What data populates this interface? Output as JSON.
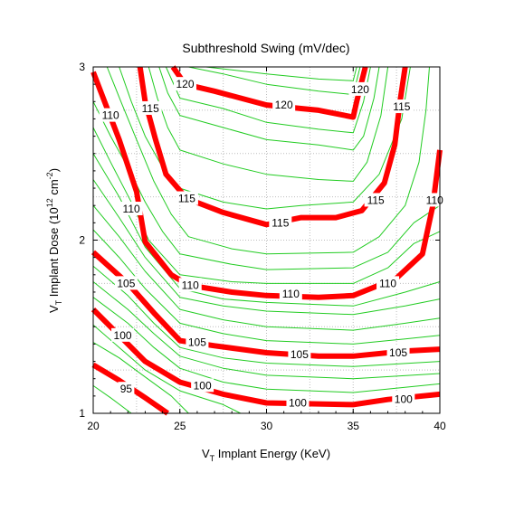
{
  "chart_data": {
    "type": "contour",
    "title": "Subthreshold Swing (mV/dec)",
    "xlabel": {
      "prefix": "V",
      "sub": "T",
      "suffix": " Implant Energy (KeV)"
    },
    "ylabel": {
      "prefix": "V",
      "sub": "T",
      "middle": " Implant Dose (10",
      "sup1": "12",
      "middle2": " cm",
      "sup2": "-2",
      "suffix": ")"
    },
    "xlim": [
      20,
      40
    ],
    "ylim": [
      1,
      3
    ],
    "xticks": [
      "20",
      "25",
      "30",
      "35",
      "40"
    ],
    "yticks": [
      "1",
      "2",
      "3"
    ],
    "grid": true,
    "major_color": "#ff0000",
    "minor_color": "#22cc22",
    "grid_color": "#bdbdbd",
    "major_levels": [
      {
        "level": "95",
        "label_at": [
          21.9,
          1.14
        ],
        "points": [
          [
            20.0,
            1.28
          ],
          [
            21.5,
            1.19
          ],
          [
            23.0,
            1.09
          ],
          [
            24.3,
            1.0
          ]
        ]
      },
      {
        "level": "100",
        "label_at": [
          26.3,
          1.16
        ],
        "points": [
          [
            20.0,
            1.6
          ],
          [
            21.5,
            1.45
          ],
          [
            23.0,
            1.3
          ],
          [
            25.0,
            1.18
          ],
          [
            27.5,
            1.11
          ],
          [
            30.0,
            1.06
          ],
          [
            35.0,
            1.05
          ],
          [
            37.0,
            1.08
          ],
          [
            40.0,
            1.11
          ]
        ],
        "labels_at": [
          [
            21.7,
            1.45
          ],
          [
            26.3,
            1.16
          ],
          [
            31.8,
            1.06
          ],
          [
            37.9,
            1.08
          ]
        ]
      },
      {
        "level": "105",
        "label_at": [
          26.0,
          1.41
        ],
        "points": [
          [
            20.0,
            1.93
          ],
          [
            22.0,
            1.75
          ],
          [
            23.5,
            1.58
          ],
          [
            25.0,
            1.42
          ],
          [
            27.0,
            1.39
          ],
          [
            30.0,
            1.35
          ],
          [
            33.0,
            1.33
          ],
          [
            35.0,
            1.33
          ],
          [
            38.0,
            1.36
          ],
          [
            40.0,
            1.37
          ]
        ],
        "labels_at": [
          [
            21.9,
            1.75
          ],
          [
            26.0,
            1.41
          ],
          [
            31.9,
            1.34
          ],
          [
            37.6,
            1.35
          ]
        ]
      },
      {
        "level": "110",
        "label_at": [
          25.6,
          1.74
        ],
        "points": [
          [
            20.0,
            2.97
          ],
          [
            21.5,
            2.58
          ],
          [
            22.5,
            2.28
          ],
          [
            23.0,
            1.99
          ],
          [
            24.5,
            1.8
          ],
          [
            25.5,
            1.74
          ],
          [
            28.0,
            1.7
          ],
          [
            30.0,
            1.68
          ],
          [
            33.0,
            1.67
          ],
          [
            35.0,
            1.68
          ],
          [
            37.5,
            1.78
          ],
          [
            39.0,
            1.92
          ],
          [
            39.6,
            2.2
          ],
          [
            40.0,
            2.52
          ]
        ],
        "labels_at": [
          [
            21.0,
            2.72
          ],
          [
            22.2,
            2.18
          ],
          [
            25.6,
            1.74
          ],
          [
            31.4,
            1.69
          ],
          [
            37.0,
            1.75
          ],
          [
            39.7,
            2.23
          ]
        ]
      },
      {
        "level": "115",
        "label_at": [
          25.4,
          2.24
        ],
        "points": [
          [
            22.7,
            3.0
          ],
          [
            23.0,
            2.8
          ],
          [
            23.6,
            2.58
          ],
          [
            24.2,
            2.38
          ],
          [
            25.4,
            2.24
          ],
          [
            27.5,
            2.16
          ],
          [
            30.0,
            2.09
          ],
          [
            32.0,
            2.13
          ],
          [
            34.0,
            2.13
          ],
          [
            35.5,
            2.17
          ],
          [
            36.8,
            2.33
          ],
          [
            37.4,
            2.55
          ],
          [
            37.7,
            2.8
          ],
          [
            38.0,
            3.0
          ]
        ],
        "labels_at": [
          [
            23.3,
            2.76
          ],
          [
            25.4,
            2.24
          ],
          [
            30.8,
            2.1
          ],
          [
            36.3,
            2.23
          ],
          [
            37.8,
            2.77
          ]
        ]
      },
      {
        "level": "120",
        "label_at": [
          25.3,
          2.9
        ],
        "points": [
          [
            24.6,
            3.0
          ],
          [
            25.3,
            2.9
          ],
          [
            27.0,
            2.86
          ],
          [
            30.0,
            2.78
          ],
          [
            32.0,
            2.76
          ],
          [
            33.0,
            2.75
          ],
          [
            35.0,
            2.71
          ],
          [
            35.2,
            2.8
          ],
          [
            35.7,
            3.0
          ]
        ],
        "labels_at": [
          [
            25.3,
            2.9
          ],
          [
            31.0,
            2.78
          ],
          [
            35.4,
            2.87
          ]
        ]
      }
    ],
    "minor_levels": [
      {
        "points": [
          [
            20.0,
            1.16
          ],
          [
            21.0,
            1.09
          ],
          [
            22.2,
            1.0
          ]
        ]
      },
      {
        "points": [
          [
            20.0,
            1.41
          ],
          [
            21.5,
            1.32
          ],
          [
            23.0,
            1.21
          ],
          [
            24.5,
            1.1
          ],
          [
            25.5,
            1.0
          ]
        ]
      },
      {
        "points": [
          [
            20.0,
            1.51
          ],
          [
            21.5,
            1.38
          ],
          [
            23.0,
            1.25
          ],
          [
            25.0,
            1.13
          ],
          [
            27.5,
            1.05
          ],
          [
            28.5,
            1.0
          ]
        ]
      },
      {
        "points": [
          [
            20.0,
            1.67
          ],
          [
            22.0,
            1.52
          ],
          [
            23.5,
            1.38
          ],
          [
            25.0,
            1.26
          ],
          [
            27.5,
            1.18
          ],
          [
            30.0,
            1.14
          ],
          [
            35.0,
            1.12
          ],
          [
            40.0,
            1.17
          ]
        ]
      },
      {
        "points": [
          [
            20.0,
            1.76
          ],
          [
            22.0,
            1.6
          ],
          [
            23.5,
            1.46
          ],
          [
            25.0,
            1.33
          ],
          [
            27.5,
            1.26
          ],
          [
            30.0,
            1.22
          ],
          [
            35.0,
            1.2
          ],
          [
            40.0,
            1.23
          ]
        ]
      },
      {
        "points": [
          [
            20.0,
            1.85
          ],
          [
            22.0,
            1.68
          ],
          [
            23.5,
            1.52
          ],
          [
            25.0,
            1.38
          ],
          [
            27.5,
            1.32
          ],
          [
            30.0,
            1.29
          ],
          [
            35.0,
            1.27
          ],
          [
            40.0,
            1.3
          ]
        ]
      },
      {
        "points": [
          [
            20.0,
            2.06
          ],
          [
            21.5,
            1.9
          ],
          [
            23.0,
            1.72
          ],
          [
            25.0,
            1.52
          ],
          [
            27.5,
            1.46
          ],
          [
            30.0,
            1.42
          ],
          [
            35.0,
            1.4
          ],
          [
            38.0,
            1.43
          ],
          [
            40.0,
            1.45
          ]
        ]
      },
      {
        "points": [
          [
            20.0,
            2.2
          ],
          [
            21.5,
            2.02
          ],
          [
            23.0,
            1.82
          ],
          [
            25.0,
            1.6
          ],
          [
            27.5,
            1.54
          ],
          [
            30.0,
            1.5
          ],
          [
            35.0,
            1.48
          ],
          [
            38.0,
            1.52
          ],
          [
            40.0,
            1.55
          ]
        ]
      },
      {
        "points": [
          [
            20.0,
            2.35
          ],
          [
            21.5,
            2.13
          ],
          [
            23.0,
            1.9
          ],
          [
            25.0,
            1.67
          ],
          [
            27.5,
            1.62
          ],
          [
            30.0,
            1.59
          ],
          [
            35.0,
            1.57
          ],
          [
            38.0,
            1.62
          ],
          [
            40.0,
            1.66
          ]
        ]
      },
      {
        "points": [
          [
            20.0,
            2.5
          ],
          [
            21.5,
            2.25
          ],
          [
            23.0,
            1.96
          ],
          [
            25.0,
            1.72
          ],
          [
            27.5,
            1.66
          ],
          [
            30.0,
            1.64
          ],
          [
            35.0,
            1.62
          ],
          [
            38.0,
            1.7
          ],
          [
            40.0,
            1.76
          ]
        ]
      },
      {
        "points": [
          [
            20.0,
            2.65
          ],
          [
            21.0,
            2.45
          ],
          [
            22.3,
            2.2
          ],
          [
            23.2,
            2.0
          ],
          [
            25.0,
            1.8
          ],
          [
            28.0,
            1.76
          ],
          [
            30.0,
            1.75
          ],
          [
            35.0,
            1.75
          ],
          [
            37.0,
            1.84
          ],
          [
            38.5,
            1.98
          ],
          [
            40.0,
            2.05
          ]
        ]
      },
      {
        "points": [
          [
            20.0,
            2.8
          ],
          [
            21.0,
            2.6
          ],
          [
            22.0,
            2.42
          ],
          [
            23.0,
            2.22
          ],
          [
            24.0,
            2.05
          ],
          [
            25.0,
            1.92
          ],
          [
            28.0,
            1.86
          ],
          [
            30.0,
            1.83
          ],
          [
            35.0,
            1.84
          ],
          [
            37.0,
            1.93
          ],
          [
            38.5,
            2.1
          ],
          [
            40.0,
            2.2
          ]
        ]
      },
      {
        "points": [
          [
            20.8,
            3.0
          ],
          [
            21.6,
            2.8
          ],
          [
            22.5,
            2.58
          ],
          [
            23.5,
            2.34
          ],
          [
            24.5,
            2.15
          ],
          [
            25.5,
            2.02
          ],
          [
            28.0,
            1.95
          ],
          [
            30.0,
            1.92
          ],
          [
            35.0,
            1.93
          ],
          [
            36.5,
            2.02
          ],
          [
            38.0,
            2.2
          ],
          [
            38.8,
            2.45
          ],
          [
            39.2,
            2.75
          ],
          [
            39.4,
            3.0
          ]
        ]
      },
      {
        "points": [
          [
            21.5,
            3.0
          ],
          [
            22.2,
            2.8
          ],
          [
            23.0,
            2.6
          ],
          [
            24.0,
            2.42
          ],
          [
            25.0,
            2.3
          ],
          [
            27.5,
            2.22
          ],
          [
            30.0,
            2.18
          ],
          [
            32.0,
            2.2
          ],
          [
            35.0,
            2.22
          ],
          [
            36.5,
            2.38
          ],
          [
            37.8,
            2.7
          ],
          [
            38.3,
            3.0
          ]
        ]
      },
      {
        "points": [
          [
            23.2,
            3.0
          ],
          [
            23.7,
            2.82
          ],
          [
            24.3,
            2.65
          ],
          [
            25.0,
            2.52
          ],
          [
            27.5,
            2.44
          ],
          [
            30.0,
            2.38
          ],
          [
            33.0,
            2.35
          ],
          [
            35.0,
            2.34
          ],
          [
            35.8,
            2.45
          ],
          [
            36.6,
            2.72
          ],
          [
            37.0,
            3.0
          ]
        ]
      },
      {
        "points": [
          [
            23.8,
            3.0
          ],
          [
            24.3,
            2.85
          ],
          [
            25.0,
            2.72
          ],
          [
            27.5,
            2.65
          ],
          [
            30.0,
            2.58
          ],
          [
            33.0,
            2.55
          ],
          [
            35.0,
            2.52
          ],
          [
            35.6,
            2.6
          ],
          [
            36.2,
            2.82
          ],
          [
            36.5,
            3.0
          ]
        ]
      },
      {
        "points": [
          [
            24.2,
            3.0
          ],
          [
            25.0,
            2.82
          ],
          [
            27.5,
            2.76
          ],
          [
            30.0,
            2.68
          ],
          [
            33.0,
            2.64
          ],
          [
            35.0,
            2.62
          ],
          [
            35.6,
            2.8
          ],
          [
            36.0,
            3.0
          ]
        ]
      },
      {
        "points": [
          [
            25.5,
            3.0
          ],
          [
            27.5,
            2.96
          ],
          [
            30.0,
            2.9
          ],
          [
            33.0,
            2.86
          ],
          [
            35.0,
            2.84
          ],
          [
            35.4,
            3.0
          ]
        ]
      },
      {
        "points": [
          [
            26.5,
            3.0
          ],
          [
            30.0,
            2.96
          ],
          [
            33.0,
            2.93
          ],
          [
            35.0,
            2.92
          ],
          [
            35.2,
            3.0
          ]
        ]
      }
    ]
  }
}
